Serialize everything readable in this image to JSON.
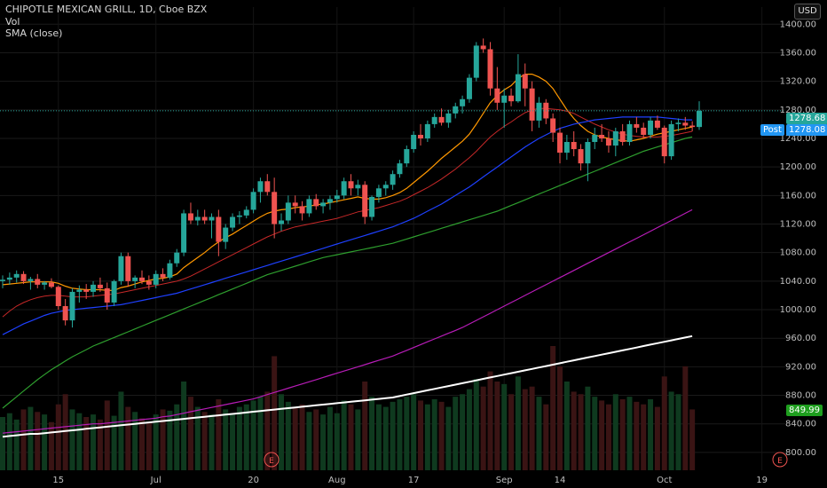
{
  "header": {
    "title": "CHIPOTLE MEXICAN GRILL, 1D, Cboe BZX",
    "vol_label": "Vol",
    "indicator_label": "SMA (close)"
  },
  "currency_button": "USD",
  "price_tags": {
    "last_price": "1278.68",
    "post_label": "Post",
    "post_price": "1278.08",
    "vol_ma": "849.99"
  },
  "earnings_marker": "E",
  "colors": {
    "up": "#26a69a",
    "down": "#ef5350",
    "sma_fast": "#ff9800",
    "sma_10": "#c62828",
    "sma_20": "#1e40ff",
    "sma_50": "#2e9e2e",
    "sma_100": "#b71cb7",
    "sma_200": "#ffffff",
    "last_price_tag": "#26a69a",
    "post_tag": "#2196f3",
    "vol_tag": "#1e9e1e"
  },
  "chart_data": {
    "type": "candlestick",
    "title": "CHIPOTLE MEXICAN GRILL, 1D, Cboe BZX",
    "y_axis": {
      "ticks": [
        800,
        840,
        880,
        920,
        960,
        1000,
        1040,
        1080,
        1120,
        1160,
        1200,
        1240,
        1280,
        1320,
        1360,
        1400
      ],
      "ylim": [
        775,
        1424
      ]
    },
    "x_axis": {
      "ticks": [
        "15",
        "Jul",
        "20",
        "Aug",
        "17",
        "Sep",
        "14",
        "Oct",
        "19"
      ]
    },
    "last_price": 1278.68,
    "ohlc": [
      [
        1040,
        1048,
        1030,
        1042
      ],
      [
        1042,
        1052,
        1035,
        1045
      ],
      [
        1045,
        1055,
        1038,
        1050
      ],
      [
        1050,
        1054,
        1036,
        1040
      ],
      [
        1040,
        1046,
        1028,
        1043
      ],
      [
        1043,
        1050,
        1030,
        1035
      ],
      [
        1035,
        1040,
        1028,
        1038
      ],
      [
        1038,
        1044,
        1030,
        1032
      ],
      [
        1032,
        1034,
        1000,
        1005
      ],
      [
        1005,
        1015,
        978,
        985
      ],
      [
        985,
        1030,
        975,
        1025
      ],
      [
        1025,
        1034,
        1010,
        1028
      ],
      [
        1028,
        1036,
        1015,
        1025
      ],
      [
        1025,
        1040,
        1018,
        1035
      ],
      [
        1035,
        1045,
        1025,
        1030
      ],
      [
        1030,
        1038,
        1000,
        1010
      ],
      [
        1010,
        1042,
        1005,
        1040
      ],
      [
        1040,
        1080,
        1035,
        1075
      ],
      [
        1075,
        1080,
        1032,
        1040
      ],
      [
        1040,
        1048,
        1030,
        1045
      ],
      [
        1045,
        1055,
        1036,
        1040
      ],
      [
        1040,
        1048,
        1028,
        1035
      ],
      [
        1035,
        1055,
        1030,
        1050
      ],
      [
        1050,
        1058,
        1040,
        1045
      ],
      [
        1045,
        1070,
        1042,
        1065
      ],
      [
        1065,
        1085,
        1060,
        1080
      ],
      [
        1080,
        1140,
        1075,
        1135
      ],
      [
        1135,
        1150,
        1120,
        1125
      ],
      [
        1125,
        1140,
        1118,
        1130
      ],
      [
        1130,
        1140,
        1120,
        1125
      ],
      [
        1125,
        1135,
        1100,
        1130
      ],
      [
        1130,
        1140,
        1075,
        1095
      ],
      [
        1095,
        1120,
        1085,
        1115
      ],
      [
        1115,
        1135,
        1110,
        1130
      ],
      [
        1130,
        1138,
        1120,
        1132
      ],
      [
        1132,
        1145,
        1128,
        1140
      ],
      [
        1140,
        1170,
        1135,
        1165
      ],
      [
        1165,
        1185,
        1150,
        1180
      ],
      [
        1180,
        1190,
        1160,
        1165
      ],
      [
        1165,
        1185,
        1100,
        1120
      ],
      [
        1120,
        1135,
        1110,
        1125
      ],
      [
        1125,
        1160,
        1120,
        1150
      ],
      [
        1150,
        1160,
        1135,
        1145
      ],
      [
        1145,
        1152,
        1125,
        1135
      ],
      [
        1135,
        1160,
        1130,
        1155
      ],
      [
        1155,
        1162,
        1140,
        1145
      ],
      [
        1145,
        1155,
        1135,
        1150
      ],
      [
        1150,
        1160,
        1140,
        1155
      ],
      [
        1155,
        1168,
        1150,
        1160
      ],
      [
        1160,
        1185,
        1155,
        1180
      ],
      [
        1180,
        1190,
        1160,
        1170
      ],
      [
        1170,
        1182,
        1160,
        1175
      ],
      [
        1175,
        1180,
        1120,
        1130
      ],
      [
        1130,
        1160,
        1125,
        1158
      ],
      [
        1158,
        1175,
        1150,
        1170
      ],
      [
        1170,
        1180,
        1160,
        1175
      ],
      [
        1175,
        1195,
        1168,
        1190
      ],
      [
        1190,
        1210,
        1185,
        1205
      ],
      [
        1205,
        1230,
        1200,
        1225
      ],
      [
        1225,
        1250,
        1220,
        1245
      ],
      [
        1245,
        1260,
        1230,
        1240
      ],
      [
        1240,
        1265,
        1235,
        1260
      ],
      [
        1260,
        1275,
        1255,
        1270
      ],
      [
        1270,
        1282,
        1258,
        1262
      ],
      [
        1262,
        1280,
        1255,
        1275
      ],
      [
        1275,
        1290,
        1268,
        1285
      ],
      [
        1285,
        1300,
        1275,
        1295
      ],
      [
        1295,
        1330,
        1290,
        1325
      ],
      [
        1325,
        1375,
        1320,
        1370
      ],
      [
        1370,
        1380,
        1360,
        1365
      ],
      [
        1365,
        1375,
        1300,
        1310
      ],
      [
        1310,
        1340,
        1280,
        1290
      ],
      [
        1290,
        1310,
        1255,
        1300
      ],
      [
        1300,
        1310,
        1285,
        1292
      ],
      [
        1292,
        1358,
        1290,
        1330
      ],
      [
        1330,
        1345,
        1285,
        1310
      ],
      [
        1310,
        1320,
        1250,
        1265
      ],
      [
        1265,
        1298,
        1255,
        1290
      ],
      [
        1290,
        1295,
        1260,
        1268
      ],
      [
        1268,
        1275,
        1235,
        1248
      ],
      [
        1248,
        1255,
        1205,
        1220
      ],
      [
        1220,
        1245,
        1210,
        1235
      ],
      [
        1235,
        1250,
        1215,
        1225
      ],
      [
        1225,
        1232,
        1195,
        1205
      ],
      [
        1205,
        1240,
        1180,
        1235
      ],
      [
        1235,
        1255,
        1225,
        1245
      ],
      [
        1245,
        1260,
        1235,
        1240
      ],
      [
        1240,
        1250,
        1220,
        1230
      ],
      [
        1230,
        1255,
        1215,
        1250
      ],
      [
        1250,
        1260,
        1230,
        1235
      ],
      [
        1235,
        1265,
        1230,
        1260
      ],
      [
        1260,
        1270,
        1248,
        1255
      ],
      [
        1255,
        1262,
        1240,
        1245
      ],
      [
        1245,
        1270,
        1240,
        1265
      ],
      [
        1265,
        1272,
        1252,
        1255
      ],
      [
        1255,
        1258,
        1205,
        1215
      ],
      [
        1215,
        1265,
        1210,
        1260
      ],
      [
        1260,
        1268,
        1250,
        1262
      ],
      [
        1262,
        1270,
        1252,
        1258
      ],
      [
        1258,
        1264,
        1250,
        1256
      ],
      [
        1256,
        1292,
        1252,
        1278.68
      ]
    ],
    "volume": [
      42,
      45,
      40,
      48,
      50,
      46,
      44,
      38,
      52,
      60,
      48,
      45,
      42,
      44,
      40,
      55,
      43,
      62,
      50,
      46,
      41,
      38,
      44,
      48,
      47,
      52,
      70,
      58,
      50,
      46,
      44,
      56,
      48,
      45,
      50,
      52,
      55,
      58,
      62,
      90,
      60,
      54,
      50,
      52,
      46,
      48,
      44,
      50,
      45,
      55,
      52,
      48,
      70,
      58,
      52,
      50,
      54,
      56,
      58,
      60,
      55,
      52,
      56,
      54,
      50,
      58,
      60,
      64,
      72,
      66,
      78,
      70,
      68,
      60,
      74,
      64,
      66,
      58,
      52,
      98,
      82,
      70,
      62,
      60,
      66,
      58,
      55,
      52,
      60,
      56,
      58,
      54,
      52,
      56,
      50,
      74,
      62,
      60,
      82,
      48
    ],
    "series": [
      {
        "name": "SMA (close)",
        "values": [
          1035,
          1036,
          1037,
          1038,
          1039,
          1039,
          1039,
          1039,
          1037,
          1033,
          1030,
          1029,
          1028,
          1028,
          1028,
          1027,
          1027,
          1031,
          1033,
          1036,
          1039,
          1041,
          1043,
          1044,
          1046,
          1050,
          1059,
          1066,
          1073,
          1080,
          1088,
          1095,
          1101,
          1106,
          1112,
          1118,
          1124,
          1130,
          1135,
          1138,
          1140,
          1141,
          1143,
          1144,
          1145,
          1147,
          1148,
          1150,
          1152,
          1154,
          1156,
          1158,
          1156,
          1155,
          1155,
          1157,
          1160,
          1164,
          1170,
          1178,
          1186,
          1194,
          1203,
          1212,
          1220,
          1228,
          1236,
          1246,
          1260,
          1275,
          1290,
          1300,
          1308,
          1314,
          1324,
          1330,
          1330,
          1326,
          1320,
          1310,
          1295,
          1280,
          1268,
          1258,
          1250,
          1245,
          1242,
          1240,
          1238,
          1237,
          1236,
          1238,
          1240,
          1243,
          1246,
          1248,
          1250,
          1252,
          1254,
          1256
        ]
      },
      {
        "name": "SMA (close)",
        "values": [
          990,
          998,
          1005,
          1010,
          1014,
          1017,
          1019,
          1020,
          1020,
          1019,
          1018,
          1018,
          1018,
          1019,
          1020,
          1021,
          1022,
          1024,
          1026,
          1028,
          1030,
          1032,
          1034,
          1036,
          1038,
          1040,
          1043,
          1047,
          1052,
          1057,
          1062,
          1067,
          1072,
          1077,
          1082,
          1087,
          1092,
          1097,
          1102,
          1106,
          1110,
          1113,
          1116,
          1118,
          1120,
          1122,
          1124,
          1126,
          1128,
          1131,
          1134,
          1137,
          1139,
          1141,
          1143,
          1146,
          1149,
          1152,
          1156,
          1161,
          1166,
          1171,
          1177,
          1183,
          1190,
          1197,
          1205,
          1213,
          1222,
          1232,
          1242,
          1250,
          1257,
          1263,
          1270,
          1276,
          1280,
          1282,
          1282,
          1281,
          1280,
          1278,
          1275,
          1270,
          1265,
          1260,
          1256,
          1252,
          1249,
          1246,
          1244,
          1243,
          1242,
          1242,
          1242,
          1243,
          1244,
          1246,
          1248,
          1250
        ]
      },
      {
        "name": "SMA (close)",
        "values": [
          965,
          970,
          975,
          980,
          984,
          988,
          992,
          995,
          997,
          999,
          1000,
          1001,
          1002,
          1003,
          1004,
          1005,
          1006,
          1007,
          1009,
          1011,
          1013,
          1015,
          1017,
          1019,
          1021,
          1023,
          1026,
          1029,
          1032,
          1035,
          1038,
          1041,
          1044,
          1047,
          1050,
          1053,
          1056,
          1059,
          1062,
          1065,
          1068,
          1071,
          1074,
          1077,
          1080,
          1083,
          1086,
          1089,
          1092,
          1095,
          1098,
          1101,
          1104,
          1107,
          1110,
          1113,
          1116,
          1120,
          1124,
          1128,
          1133,
          1138,
          1143,
          1148,
          1154,
          1160,
          1166,
          1172,
          1179,
          1186,
          1193,
          1200,
          1207,
          1214,
          1221,
          1228,
          1234,
          1240,
          1245,
          1250,
          1254,
          1257,
          1260,
          1262,
          1264,
          1266,
          1267,
          1268,
          1269,
          1270,
          1270,
          1270,
          1270,
          1270,
          1270,
          1269,
          1268,
          1267,
          1266,
          1266
        ]
      },
      {
        "name": "SMA (close)",
        "values": [
          862,
          870,
          878,
          886,
          894,
          902,
          909,
          916,
          922,
          928,
          934,
          939,
          944,
          949,
          953,
          957,
          961,
          965,
          969,
          973,
          977,
          981,
          985,
          989,
          993,
          997,
          1001,
          1005,
          1009,
          1013,
          1017,
          1021,
          1025,
          1029,
          1033,
          1037,
          1041,
          1045,
          1049,
          1052,
          1055,
          1058,
          1061,
          1064,
          1067,
          1070,
          1073,
          1075,
          1077,
          1079,
          1081,
          1083,
          1085,
          1087,
          1089,
          1091,
          1093,
          1096,
          1099,
          1102,
          1105,
          1108,
          1111,
          1114,
          1117,
          1120,
          1123,
          1126,
          1129,
          1132,
          1135,
          1138,
          1142,
          1146,
          1150,
          1154,
          1158,
          1162,
          1166,
          1170,
          1174,
          1178,
          1182,
          1186,
          1190,
          1194,
          1198,
          1202,
          1206,
          1210,
          1214,
          1218,
          1222,
          1225,
          1228,
          1231,
          1234,
          1237,
          1240,
          1242
        ]
      },
      {
        "name": "SMA (close)",
        "values": [
          827,
          828,
          829,
          830,
          831,
          832,
          833,
          834,
          835,
          836,
          837,
          838,
          839,
          840,
          840,
          841,
          842,
          843,
          844,
          845,
          846,
          847,
          848,
          850,
          851,
          853,
          855,
          857,
          859,
          861,
          863,
          865,
          867,
          869,
          871,
          873,
          875,
          878,
          881,
          884,
          887,
          890,
          893,
          896,
          899,
          902,
          905,
          908,
          911,
          914,
          917,
          920,
          923,
          926,
          929,
          932,
          935,
          939,
          943,
          947,
          951,
          955,
          959,
          963,
          967,
          971,
          975,
          980,
          985,
          990,
          995,
          1000,
          1005,
          1010,
          1015,
          1020,
          1025,
          1030,
          1035,
          1040,
          1045,
          1050,
          1055,
          1060,
          1065,
          1070,
          1075,
          1080,
          1085,
          1090,
          1095,
          1100,
          1105,
          1110,
          1115,
          1120,
          1125,
          1130,
          1135,
          1140
        ]
      },
      {
        "name": "SMA (close)",
        "values": [
          822,
          823,
          824,
          825,
          826,
          826,
          827,
          828,
          829,
          830,
          831,
          832,
          833,
          834,
          835,
          836,
          837,
          838,
          839,
          840,
          841,
          842,
          843,
          844,
          845,
          846,
          847,
          848,
          849,
          850,
          851,
          852,
          853,
          854,
          855,
          856,
          857,
          858,
          859,
          860,
          861,
          862,
          863,
          864,
          865,
          866,
          867,
          868,
          869,
          870,
          871,
          872,
          873,
          874,
          875,
          876,
          877,
          879,
          881,
          883,
          885,
          887,
          889,
          891,
          893,
          895,
          897,
          899,
          901,
          903,
          905,
          907,
          909,
          911,
          913,
          915,
          917,
          919,
          921,
          923,
          925,
          927,
          929,
          931,
          933,
          935,
          937,
          939,
          941,
          943,
          945,
          947,
          949,
          951,
          953,
          955,
          957,
          959,
          961,
          963
        ]
      }
    ]
  }
}
